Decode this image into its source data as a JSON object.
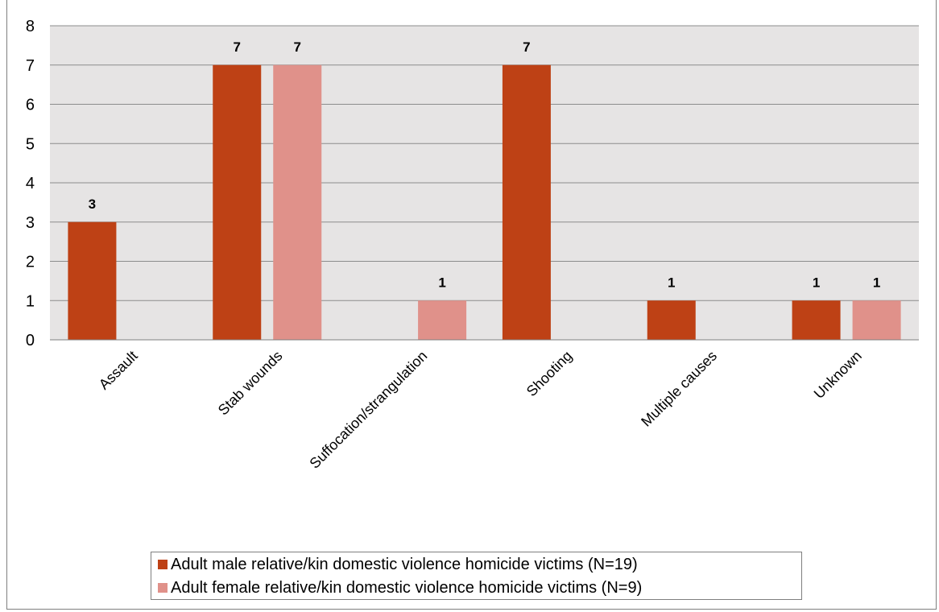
{
  "chart_data": {
    "type": "bar",
    "categories": [
      "Assault",
      "Stab wounds",
      "Suffocation/strangulation",
      "Shooting",
      "Multiple causes",
      "Unknown"
    ],
    "series": [
      {
        "name": "Adult male relative/kin domestic violence homicide victims (N=19)",
        "values": [
          3,
          7,
          0,
          7,
          1,
          1
        ],
        "data_labels": [
          "3",
          "7",
          "",
          "7",
          "1",
          "1"
        ],
        "color": "#be4115"
      },
      {
        "name": "Adult female relative/kin domestic violence homicide victims (N=9)",
        "values": [
          0,
          7,
          1,
          0,
          0,
          1
        ],
        "data_labels": [
          "",
          "7",
          "1",
          "",
          "",
          "1"
        ],
        "color": "#e0918a"
      }
    ],
    "ylim": [
      0,
      8
    ],
    "yticks": [
      "0",
      "1",
      "2",
      "3",
      "4",
      "5",
      "6",
      "7",
      "8"
    ],
    "grid": true,
    "plot_background": "#e6e4e4",
    "gridline_color": "#8c8c8c",
    "legend_position": "bottom",
    "xlabel": "",
    "ylabel": ""
  }
}
